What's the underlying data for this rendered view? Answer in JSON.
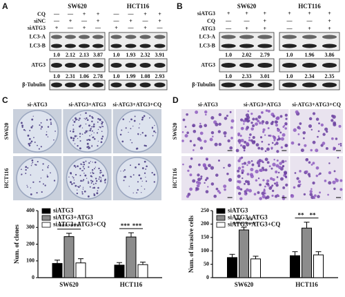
{
  "panel_a": {
    "letter": "A",
    "cell_lines": [
      "SW620",
      "HCT116"
    ],
    "conditions": [
      {
        "label": "CQ",
        "signs": [
          "—",
          "—",
          "+",
          "+",
          "—",
          "—",
          "+",
          "+"
        ]
      },
      {
        "label": "siNC",
        "signs": [
          "—",
          "+",
          "—",
          "+",
          "—",
          "+",
          "—",
          "+"
        ]
      },
      {
        "label": "siATG3",
        "signs": [
          "+",
          "—",
          "+",
          "—",
          "+",
          "—",
          "+",
          "—"
        ]
      }
    ],
    "blots": [
      {
        "labels": [
          "LC3-A",
          "LC3-B"
        ],
        "quant": [
          "1.0",
          "2.12",
          "2.13",
          "3.87",
          "1.0",
          "1.93",
          "2.32",
          "3.91"
        ]
      },
      {
        "labels": [
          "ATG3"
        ],
        "quant": [
          "1.0",
          "2.31",
          "1.06",
          "2.78",
          "1.0",
          "1.99",
          "1.08",
          "2.93"
        ]
      },
      {
        "labels": [
          "β-Tubulin"
        ]
      }
    ]
  },
  "panel_b": {
    "letter": "B",
    "cell_lines": [
      "SW620",
      "HCT116"
    ],
    "conditions": [
      {
        "label": "siATG3",
        "signs": [
          "+",
          "+",
          "+",
          "+",
          "+",
          "+"
        ]
      },
      {
        "label": "CQ",
        "signs": [
          "—",
          "—",
          "+",
          "—",
          "—",
          "+"
        ]
      },
      {
        "label": "ATG3",
        "signs": [
          "—",
          "+",
          "+",
          "—",
          "+",
          "+"
        ]
      }
    ],
    "blots": [
      {
        "labels": [
          "LC3-A",
          "LC3-B"
        ],
        "quant": [
          "1.0",
          "2.02",
          "2.79",
          "1.0",
          "1.96",
          "3.86"
        ]
      },
      {
        "labels": [
          "ATG3"
        ],
        "quant": [
          "1.0",
          "2.33",
          "3.01",
          "1.0",
          "2.34",
          "2.35"
        ]
      },
      {
        "labels": [
          "β-Tubulin"
        ]
      }
    ]
  },
  "panel_c": {
    "letter": "C",
    "columns": [
      "si-ATG3",
      "si-ATG3+ATG3",
      "si-ATG3+ATG3+CQ"
    ],
    "rows": [
      "SW620",
      "HCT116"
    ]
  },
  "panel_d": {
    "letter": "D",
    "columns": [
      "si-ATG3",
      "si-ATG3+ATG3",
      "si-ATG3+ATG3+CQ"
    ],
    "rows": [
      "SW620",
      "HCT116"
    ]
  },
  "chart_data": [
    {
      "type": "bar",
      "ylabel": "Num. of clones",
      "categories": [
        "SW620",
        "HCT116"
      ],
      "series": [
        {
          "name": "siATG3",
          "color": "#000000",
          "values": [
            85,
            75
          ],
          "errors": [
            20,
            15
          ]
        },
        {
          "name": "siATG3+ATG3",
          "color": "#8c8c8c",
          "values": [
            245,
            243
          ],
          "errors": [
            20,
            25
          ]
        },
        {
          "name": "siATG3+ATG3+CQ",
          "color": "#ffffff",
          "values": [
            88,
            78
          ],
          "errors": [
            25,
            15
          ]
        }
      ],
      "ylim": [
        0,
        400
      ],
      "yticks": [
        0,
        100,
        200,
        300,
        400
      ],
      "significance": [
        [
          "***",
          "***"
        ],
        [
          "***",
          "***"
        ]
      ]
    },
    {
      "type": "bar",
      "ylabel": "Num. of invasive cells",
      "categories": [
        "SW620",
        "HCT116"
      ],
      "series": [
        {
          "name": "siATG3",
          "color": "#000000",
          "values": [
            75,
            82
          ],
          "errors": [
            12,
            15
          ]
        },
        {
          "name": "siATG3+ATG3",
          "color": "#8c8c8c",
          "values": [
            178,
            185
          ],
          "errors": [
            10,
            22
          ]
        },
        {
          "name": "siATG3+ATG3+CQ",
          "color": "#ffffff",
          "values": [
            70,
            85
          ],
          "errors": [
            10,
            12
          ]
        }
      ],
      "ylim": [
        0,
        250
      ],
      "yticks": [
        0,
        50,
        100,
        150,
        200,
        250
      ],
      "significance": [
        [
          "**",
          "**"
        ],
        [
          "**",
          "**"
        ]
      ]
    }
  ]
}
